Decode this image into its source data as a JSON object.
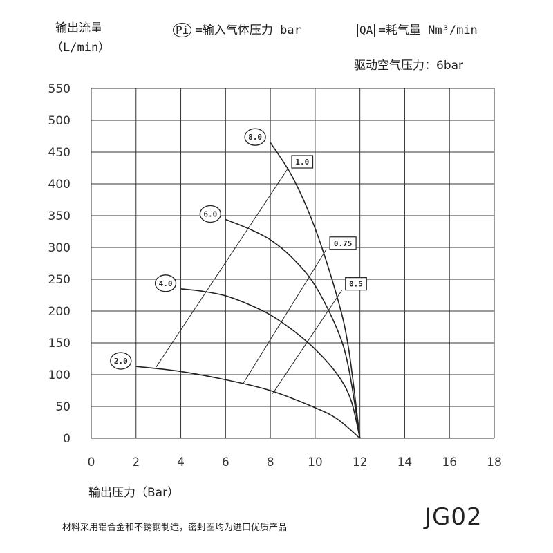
{
  "header": {
    "y_label": "输出流量",
    "y_unit": "（L/min）",
    "pi_symbol": "Pi",
    "pi_desc": "=输入气体压力 bar",
    "qa_symbol": "QA",
    "qa_desc": "=耗气量 Nm³/min",
    "drive_pressure": "驱动空气压力：6bar"
  },
  "footer": {
    "x_label": "输出压力（Bar）",
    "note": "材料采用铝合金和不锈钢制造，密封圈均为进口优质产品",
    "model": "JG02"
  },
  "chart_data": {
    "type": "line",
    "title": "",
    "xlabel": "输出压力（Bar）",
    "ylabel": "输出流量（L/min）",
    "xlim": [
      0,
      18
    ],
    "ylim": [
      0,
      550
    ],
    "x_ticks": [
      "0",
      "2",
      "4",
      "6",
      "8",
      "10",
      "12",
      "14",
      "16",
      "18"
    ],
    "y_ticks": [
      "0",
      "50",
      "100",
      "150",
      "200",
      "250",
      "300",
      "350",
      "400",
      "450",
      "500",
      "550"
    ],
    "grid": true,
    "pi_series": [
      {
        "name": "2.0",
        "points": [
          [
            2.0,
            113
          ],
          [
            4.0,
            105
          ],
          [
            6.0,
            92
          ],
          [
            8.0,
            75
          ],
          [
            10.0,
            48
          ],
          [
            11.0,
            30
          ],
          [
            12.0,
            0
          ]
        ]
      },
      {
        "name": "4.0",
        "points": [
          [
            4.0,
            235
          ],
          [
            5.0,
            231
          ],
          [
            6.0,
            224
          ],
          [
            7.0,
            211
          ],
          [
            8.0,
            194
          ],
          [
            9.0,
            170
          ],
          [
            10.0,
            140
          ],
          [
            11.0,
            100
          ],
          [
            11.6,
            60
          ],
          [
            12.0,
            0
          ]
        ]
      },
      {
        "name": "6.0",
        "points": [
          [
            6.0,
            344
          ],
          [
            7.0,
            330
          ],
          [
            8.0,
            312
          ],
          [
            9.0,
            283
          ],
          [
            10.0,
            240
          ],
          [
            11.0,
            170
          ],
          [
            11.5,
            110
          ],
          [
            12.0,
            0
          ]
        ]
      },
      {
        "name": "8.0",
        "points": [
          [
            8.0,
            465
          ],
          [
            9.0,
            410
          ],
          [
            10.0,
            330
          ],
          [
            11.0,
            220
          ],
          [
            11.5,
            140
          ],
          [
            12.0,
            0
          ]
        ]
      }
    ],
    "qa_series": [
      {
        "name": "1.0",
        "points": [
          [
            2.9,
            112
          ],
          [
            8.8,
            425
          ]
        ]
      },
      {
        "name": "0.75",
        "points": [
          [
            6.8,
            87
          ],
          [
            10.5,
            297
          ]
        ]
      },
      {
        "name": "0.5",
        "points": [
          [
            8.1,
            70
          ],
          [
            11.2,
            233
          ]
        ]
      }
    ]
  }
}
